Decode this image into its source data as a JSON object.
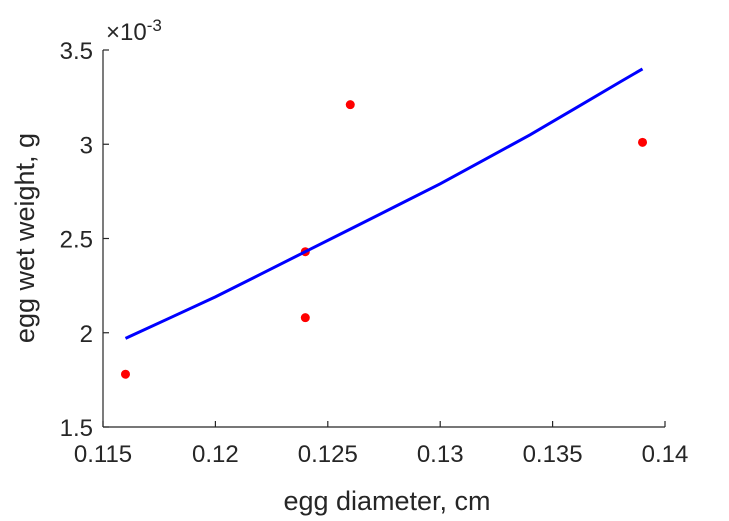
{
  "chart_data": {
    "type": "scatter",
    "title": "",
    "xlabel": "egg diameter, cm",
    "ylabel": "egg wet weight, g",
    "xlim": [
      0.115,
      0.14
    ],
    "ylim": [
      1.5,
      3.5
    ],
    "y_scale_exponent_label": {
      "base": "×10",
      "exp": "-3"
    },
    "xticks": [
      0.115,
      0.12,
      0.125,
      0.13,
      0.135,
      0.14
    ],
    "xtick_labels": [
      "0.115",
      "0.12",
      "0.125",
      "0.13",
      "0.135",
      "0.14"
    ],
    "yticks": [
      1.5,
      2,
      2.5,
      3,
      3.5
    ],
    "ytick_labels": [
      "1.5",
      "2",
      "2.5",
      "3",
      "3.5"
    ],
    "grid": false,
    "legend": "none",
    "series": [
      {
        "type": "scatter",
        "color": "#ff0000",
        "x": [
          0.116,
          0.124,
          0.124,
          0.126,
          0.139
        ],
        "y": [
          1.78,
          2.08,
          2.43,
          3.21,
          3.01
        ]
      },
      {
        "type": "line",
        "color": "#0000ff",
        "x": [
          0.116,
          0.118,
          0.12,
          0.122,
          0.124,
          0.126,
          0.128,
          0.13,
          0.132,
          0.134,
          0.136,
          0.138,
          0.139
        ],
        "y": [
          1.97,
          2.08,
          2.19,
          2.31,
          2.43,
          2.55,
          2.67,
          2.79,
          2.92,
          3.05,
          3.19,
          3.33,
          3.4
        ]
      }
    ]
  }
}
